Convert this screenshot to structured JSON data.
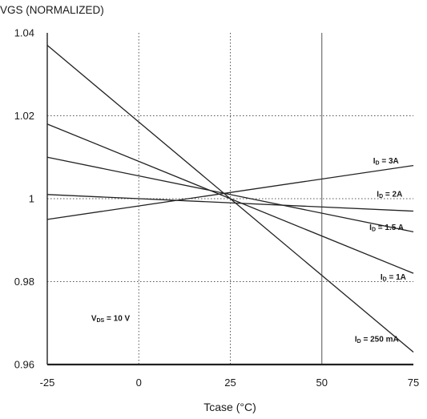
{
  "chart_data": {
    "type": "line",
    "title": "VGS (NORMALIZED)",
    "xlabel": "Tcase (°C)",
    "ylabel": "",
    "xlim": [
      -25,
      75
    ],
    "ylim": [
      0.96,
      1.04
    ],
    "x_ticks": [
      "-25",
      "0",
      "25",
      "50",
      "75"
    ],
    "y_ticks": [
      "0.96",
      "0.98",
      "1",
      "1.02",
      "1.04"
    ],
    "grid": true,
    "series": [
      {
        "name": "ID = 3A",
        "x": [
          -25,
          75
        ],
        "y": [
          0.995,
          1.008
        ]
      },
      {
        "name": "ID = 2A",
        "x": [
          -25,
          75
        ],
        "y": [
          1.001,
          0.997
        ]
      },
      {
        "name": "ID = 1.5 A",
        "x": [
          -25,
          75
        ],
        "y": [
          1.01,
          0.992
        ]
      },
      {
        "name": "ID = 1A",
        "x": [
          -25,
          75
        ],
        "y": [
          1.018,
          0.982
        ]
      },
      {
        "name": "ID = 250 mA",
        "x": [
          -25,
          75
        ],
        "y": [
          1.037,
          0.963
        ]
      }
    ],
    "annotations": [
      {
        "text_main": "I",
        "text_sub": "D",
        "text_rest": " = 3A",
        "x": 64,
        "y": 1.0085
      },
      {
        "text_main": "I",
        "text_sub": "D",
        "text_rest": " = 2A",
        "x": 65,
        "y": 1.0005
      },
      {
        "text_main": "I",
        "text_sub": "D",
        "text_rest": " = 1.5 A",
        "x": 63,
        "y": 0.9925
      },
      {
        "text_main": "I",
        "text_sub": "D",
        "text_rest": " = 1A",
        "x": 66,
        "y": 0.9805
      },
      {
        "text_main": "I",
        "text_sub": "D",
        "text_rest": " = 250 mA",
        "x": 59,
        "y": 0.9655
      },
      {
        "text_main": "V",
        "text_sub": "DS",
        "text_rest": " = 10 V",
        "x": -13,
        "y": 0.9705
      }
    ]
  }
}
